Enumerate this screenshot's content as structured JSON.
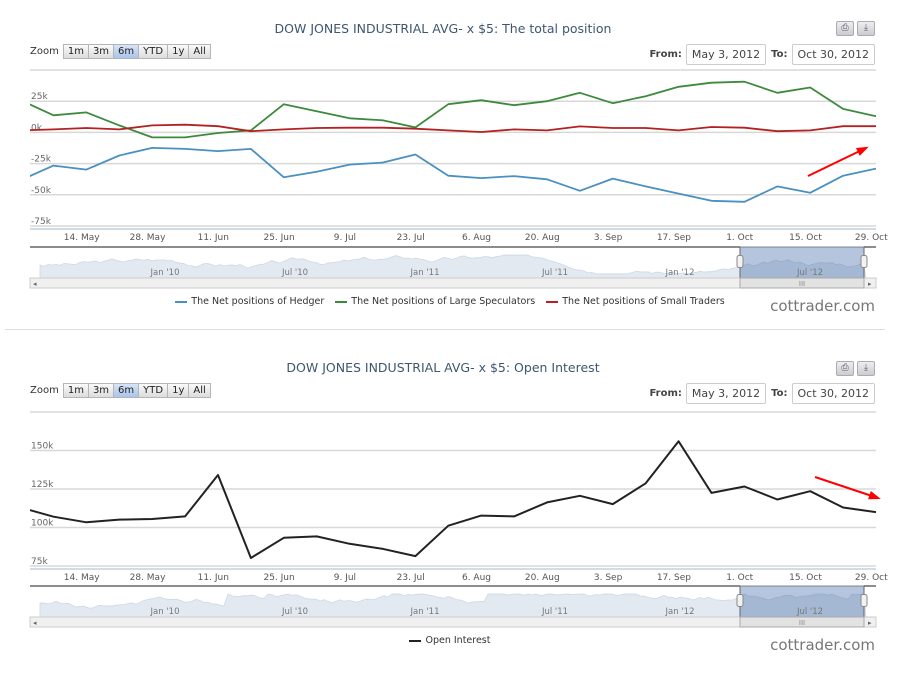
{
  "watermark": "cottrader.com",
  "zoom_label": "Zoom",
  "zoom_buttons": [
    "1m",
    "3m",
    "6m",
    "YTD",
    "1y",
    "All"
  ],
  "zoom_selected": "6m",
  "range": {
    "from_label": "From:",
    "from": "May 3, 2012",
    "to_label": "To:",
    "to": "Oct 30, 2012"
  },
  "export_icons": [
    "print-icon",
    "download-icon"
  ],
  "navigator_labels": [
    "Jan '10",
    "Jul '10",
    "Jan '11",
    "Jul '11",
    "Jan '12",
    "Jul '12"
  ],
  "chart_data": [
    {
      "type": "line",
      "title": "DOW JONES INDUSTRIAL AVG- x $5: The total position",
      "xlim": [
        "2012-05-03",
        "2012-10-30"
      ],
      "ylim": [
        -75000,
        50000
      ],
      "grid": true,
      "legend": "bottom",
      "x_ticks": [
        {
          "date": "2012-05-14",
          "label": "14. May"
        },
        {
          "date": "2012-05-28",
          "label": "28. May"
        },
        {
          "date": "2012-06-11",
          "label": "11. Jun"
        },
        {
          "date": "2012-06-25",
          "label": "25. Jun"
        },
        {
          "date": "2012-07-09",
          "label": "9. Jul"
        },
        {
          "date": "2012-07-23",
          "label": "23. Jul"
        },
        {
          "date": "2012-08-06",
          "label": "6. Aug"
        },
        {
          "date": "2012-08-20",
          "label": "20. Aug"
        },
        {
          "date": "2012-09-03",
          "label": "3. Sep"
        },
        {
          "date": "2012-09-17",
          "label": "17. Sep"
        },
        {
          "date": "2012-10-01",
          "label": "1. Oct"
        },
        {
          "date": "2012-10-15",
          "label": "15. Oct"
        },
        {
          "date": "2012-10-29",
          "label": "29. Oct"
        }
      ],
      "y_ticks": [
        {
          "value": 25000,
          "label": "25k"
        },
        {
          "value": 0,
          "label": "0k"
        },
        {
          "value": -25000,
          "label": "-25k"
        },
        {
          "value": -50000,
          "label": "-50k"
        },
        {
          "value": -75000,
          "label": "-75k"
        }
      ],
      "x": [
        "2012-05-01",
        "2012-05-08",
        "2012-05-15",
        "2012-05-22",
        "2012-05-29",
        "2012-06-05",
        "2012-06-12",
        "2012-06-19",
        "2012-06-26",
        "2012-07-03",
        "2012-07-10",
        "2012-07-17",
        "2012-07-24",
        "2012-07-31",
        "2012-08-07",
        "2012-08-14",
        "2012-08-21",
        "2012-08-28",
        "2012-09-04",
        "2012-09-11",
        "2012-09-18",
        "2012-09-25",
        "2012-10-02",
        "2012-10-09",
        "2012-10-16",
        "2012-10-23",
        "2012-10-30"
      ],
      "series": [
        {
          "name": "The Net positions of Hedger",
          "color": "#4a90c0",
          "values": [
            -38200,
            -26600,
            -29800,
            -18500,
            -12400,
            -13200,
            -15000,
            -13200,
            -36000,
            -31500,
            -25800,
            -24200,
            -17700,
            -34700,
            -36600,
            -35000,
            -37600,
            -46800,
            -37000,
            -43300,
            -49000,
            -54800,
            -55600,
            -43300,
            -48400,
            -34700,
            -29000
          ]
        },
        {
          "name": "The Net positions of Large Speculators",
          "color": "#3d8a3d",
          "values": [
            25800,
            13700,
            16000,
            5600,
            -4000,
            -4000,
            -500,
            1600,
            22600,
            17000,
            11300,
            9700,
            4000,
            22600,
            25800,
            21800,
            25000,
            31700,
            23400,
            29000,
            36500,
            39800,
            40600,
            31700,
            36000,
            18800,
            12900
          ]
        },
        {
          "name": "The Net positions of Small Traders",
          "color": "#b22222",
          "values": [
            1600,
            2400,
            3500,
            2400,
            5600,
            6200,
            5000,
            1000,
            2400,
            3500,
            3800,
            3800,
            3000,
            1600,
            300,
            2400,
            1600,
            4800,
            3500,
            3500,
            1600,
            4300,
            3800,
            1000,
            1600,
            5000,
            5000
          ]
        }
      ],
      "annotation": {
        "type": "arrow",
        "direction": "up",
        "color": "#ff0000"
      }
    },
    {
      "type": "line",
      "title": "DOW JONES INDUSTRIAL AVG- x $5: Open Interest",
      "xlim": [
        "2012-05-03",
        "2012-10-30"
      ],
      "ylim": [
        75000,
        175000
      ],
      "grid": true,
      "legend": "bottom",
      "x_ticks": [
        {
          "date": "2012-05-14",
          "label": "14. May"
        },
        {
          "date": "2012-05-28",
          "label": "28. May"
        },
        {
          "date": "2012-06-11",
          "label": "11. Jun"
        },
        {
          "date": "2012-06-25",
          "label": "25. Jun"
        },
        {
          "date": "2012-07-09",
          "label": "9. Jul"
        },
        {
          "date": "2012-07-23",
          "label": "23. Jul"
        },
        {
          "date": "2012-08-06",
          "label": "6. Aug"
        },
        {
          "date": "2012-08-20",
          "label": "20. Aug"
        },
        {
          "date": "2012-09-03",
          "label": "3. Sep"
        },
        {
          "date": "2012-09-17",
          "label": "17. Sep"
        },
        {
          "date": "2012-10-01",
          "label": "1. Oct"
        },
        {
          "date": "2012-10-15",
          "label": "15. Oct"
        },
        {
          "date": "2012-10-29",
          "label": "29. Oct"
        }
      ],
      "y_ticks": [
        {
          "value": 150000,
          "label": "150k"
        },
        {
          "value": 125000,
          "label": "125k"
        },
        {
          "value": 100000,
          "label": "100k"
        },
        {
          "value": 75000,
          "label": "75k"
        }
      ],
      "x": [
        "2012-05-01",
        "2012-05-08",
        "2012-05-15",
        "2012-05-22",
        "2012-05-29",
        "2012-06-05",
        "2012-06-12",
        "2012-06-19",
        "2012-06-26",
        "2012-07-03",
        "2012-07-10",
        "2012-07-17",
        "2012-07-24",
        "2012-07-31",
        "2012-08-07",
        "2012-08-14",
        "2012-08-21",
        "2012-08-28",
        "2012-09-04",
        "2012-09-11",
        "2012-09-18",
        "2012-09-25",
        "2012-10-02",
        "2012-10-09",
        "2012-10-16",
        "2012-10-23",
        "2012-10-30"
      ],
      "series": [
        {
          "name": "Open Interest",
          "color": "#222222",
          "values": [
            113000,
            107000,
            103400,
            105100,
            105500,
            107200,
            134100,
            80200,
            93300,
            94200,
            89400,
            86200,
            81400,
            101200,
            107700,
            107200,
            116300,
            120600,
            115200,
            128700,
            156000,
            122500,
            126600,
            118200,
            123600,
            113000,
            110000
          ]
        }
      ],
      "annotation": {
        "type": "arrow",
        "direction": "down",
        "color": "#ff0000"
      }
    }
  ]
}
